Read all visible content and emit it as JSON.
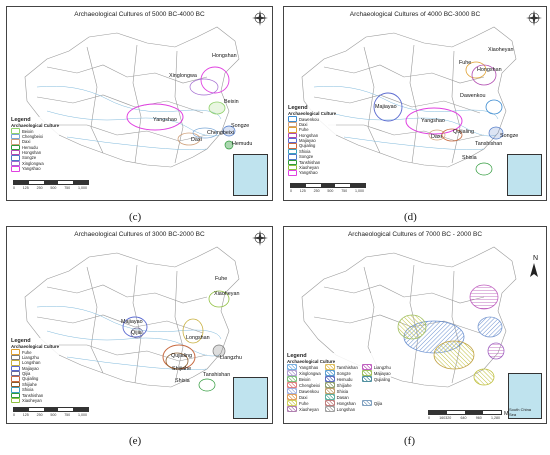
{
  "panels": [
    {
      "id": "c",
      "title": "Archaeological Cultures of 5000 BC-4000 BC",
      "caption": "(c)",
      "legend_title": "Legend",
      "legend_subtitle": "Archaeological Culture",
      "legend_items": [
        {
          "label": "Beixin",
          "color": "#8fd16a"
        },
        {
          "label": "Chengbeixi",
          "color": "#7aa7d6"
        },
        {
          "label": "Daxi",
          "color": "#cfa07a"
        },
        {
          "label": "Hemudu",
          "color": "#2e9a3a"
        },
        {
          "label": "Hongshan",
          "color": "#b04ab0"
        },
        {
          "label": "Songze",
          "color": "#4e79c8"
        },
        {
          "label": "Xinglongwa",
          "color": "#a26ad0"
        },
        {
          "label": "Yangshao",
          "color": "#e040e0"
        }
      ],
      "map_labels": [
        "Hongshan",
        "Xinglongwa",
        "Yangshao",
        "Beixin",
        "Daxi",
        "Chengbeixi",
        "Songze",
        "Hemudu"
      ],
      "scale_labels": [
        "0",
        "125",
        "250",
        "500",
        "750",
        "1,000"
      ]
    },
    {
      "id": "d",
      "title": "Archaeological Cultures of 4000 BC-3000 BC",
      "caption": "(d)",
      "legend_title": "Legend",
      "legend_subtitle": "Archaeological Culture",
      "legend_items": [
        {
          "label": "Dawenkou",
          "color": "#3a8ad0"
        },
        {
          "label": "Daxi",
          "color": "#cfa07a"
        },
        {
          "label": "Fuhe",
          "color": "#e0a030"
        },
        {
          "label": "Hongshan",
          "color": "#b04ab0"
        },
        {
          "label": "Majiayao",
          "color": "#5a6ad0"
        },
        {
          "label": "Qujialing",
          "color": "#c86a40"
        },
        {
          "label": "Shixia",
          "color": "#3aa0c0"
        },
        {
          "label": "Songze",
          "color": "#4e79c8"
        },
        {
          "label": "Tanshishan",
          "color": "#2e9a3a"
        },
        {
          "label": "Xiaoheyan",
          "color": "#90c040"
        },
        {
          "label": "Yangshao",
          "color": "#e040e0"
        }
      ],
      "map_labels": [
        "Xiaoheyan",
        "Fuhe",
        "Hongshan",
        "Dawenkou",
        "Majiayao",
        "Yangshao",
        "Daxi",
        "Qujialing",
        "Songze",
        "Shixia",
        "Tanshishan"
      ],
      "scale_labels": [
        "0",
        "125",
        "250",
        "500",
        "750",
        "1,000"
      ]
    },
    {
      "id": "e",
      "title": "Archaeological Cultures of 3000 BC-2000 BC",
      "caption": "(e)",
      "legend_title": "Legend",
      "legend_subtitle": "Archaeological Culture",
      "legend_items": [
        {
          "label": "Fuhe",
          "color": "#e0a030"
        },
        {
          "label": "Liangzhu",
          "color": "#7a7a7a"
        },
        {
          "label": "Longshan",
          "color": "#c8b040"
        },
        {
          "label": "Majiayao",
          "color": "#5a6ad0"
        },
        {
          "label": "Qijia",
          "color": "#6a6a9a"
        },
        {
          "label": "Qujialing",
          "color": "#c86a40"
        },
        {
          "label": "Shijiahe",
          "color": "#8a5a2a"
        },
        {
          "label": "Shixia",
          "color": "#3aa0c0"
        },
        {
          "label": "Tanshishan",
          "color": "#2e9a3a"
        },
        {
          "label": "Xiaoheyan",
          "color": "#90c040"
        }
      ],
      "map_labels": [
        "Fuhe",
        "Xiaoheyan",
        "Majiayao",
        "Qijia",
        "Longshan",
        "Qujialing",
        "Shijiahe",
        "Liangzhu",
        "Shixia",
        "Tanshishan"
      ],
      "scale_labels": [
        "0",
        "125",
        "250",
        "500",
        "750",
        "1,000"
      ]
    },
    {
      "id": "f",
      "title": "Archaeological Cultures of 7000 BC - 2000 BC",
      "caption": "(f)",
      "legend_title": "Legend",
      "legend_subtitle": "Archaeological Culture",
      "legend_items": [
        {
          "label": "YangShao",
          "color": "#7ab0e0"
        },
        {
          "label": "Tanshishan",
          "color": "#e0c060"
        },
        {
          "label": "Liangzhu",
          "color": "#c060c0"
        },
        {
          "label": "Xinglongwa",
          "color": "#b0a0d0"
        },
        {
          "label": "Songze",
          "color": "#60a0d0"
        },
        {
          "label": "Majiayao",
          "color": "#a0c060"
        },
        {
          "label": "Beixin",
          "color": "#80c080"
        },
        {
          "label": "Hemudu",
          "color": "#6070c0"
        },
        {
          "label": "Qujialing",
          "color": "#5090a0"
        },
        {
          "label": "Chengbeixi",
          "color": "#e08080"
        },
        {
          "label": "Shijiahe",
          "color": "#90a070"
        },
        {
          "label": "",
          "color": ""
        },
        {
          "label": "Dawenkou",
          "color": "#a0b0e0"
        },
        {
          "label": "Shixia",
          "color": "#c0a070"
        },
        {
          "label": "",
          "color": ""
        },
        {
          "label": "Daxi",
          "color": "#e0a060"
        },
        {
          "label": "Dasan",
          "color": "#60b0a0"
        },
        {
          "label": "",
          "color": ""
        },
        {
          "label": "Fuhe",
          "color": "#d0d060"
        },
        {
          "label": "Hongshan",
          "color": "#c08080"
        },
        {
          "label": "Qijia",
          "color": "#80a0c0"
        },
        {
          "label": "Xiaoheyan",
          "color": "#b080b0"
        },
        {
          "label": "Longshan",
          "color": "#a0a0a0"
        },
        {
          "label": "",
          "color": ""
        }
      ],
      "scale_labels": [
        "0",
        "160320",
        "640",
        "960",
        "1,280"
      ],
      "scale_unit": "Miles",
      "north_label": "N",
      "inset_label": "South China Sea"
    }
  ]
}
